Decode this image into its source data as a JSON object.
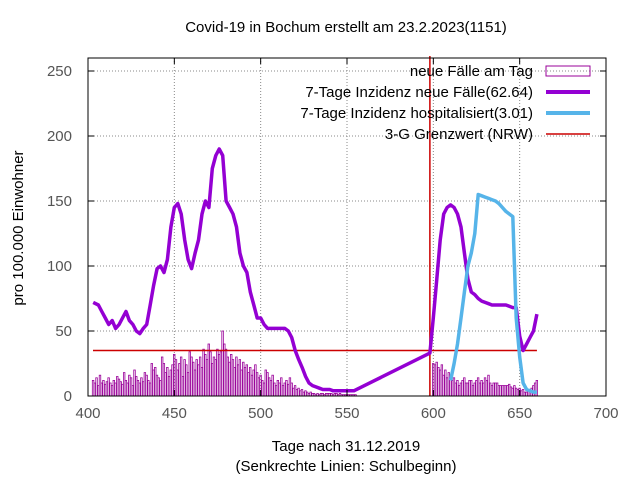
{
  "chart_data": {
    "type": "line",
    "title": "Covid-19 in Bochum erstellt am 23.2.2023(1151)",
    "xlabel": "Tage nach 31.12.2019",
    "xlabel2": "(Senkrechte Linien: Schulbeginn)",
    "ylabel": "pro 100.000 Einwohner",
    "xlim": [
      400,
      700
    ],
    "ylim": [
      0,
      260
    ],
    "xticks": [
      400,
      450,
      500,
      550,
      600,
      650,
      700
    ],
    "yticks": [
      0,
      50,
      100,
      150,
      200,
      250
    ],
    "grid": true,
    "legend_position": "top-right",
    "colors": {
      "bars": "#990099",
      "incidence": "#9400d3",
      "hospital": "#56b4e9",
      "threshold": "#cc0000"
    },
    "legend": [
      {
        "label": "neue Fälle am Tag",
        "kind": "box"
      },
      {
        "label": "7-Tage Inzidenz neue Fälle(62.64)",
        "kind": "line-thick"
      },
      {
        "label": "7-Tage Inzidenz hospitalisiert(3.01)",
        "kind": "line-hosp"
      },
      {
        "label": "3-G Grenzwert (NRW)",
        "kind": "line-thin"
      }
    ],
    "threshold": 35,
    "school_start_x": 598,
    "series": [
      {
        "name": "7-Tage Inzidenz neue Fälle(62.64)",
        "x": [
          403,
          406,
          408,
          410,
          412,
          414,
          416,
          418,
          420,
          422,
          424,
          426,
          428,
          430,
          432,
          434,
          436,
          438,
          440,
          442,
          444,
          446,
          448,
          450,
          452,
          454,
          456,
          458,
          460,
          462,
          464,
          466,
          468,
          470,
          472,
          474,
          476,
          478,
          480,
          482,
          484,
          486,
          488,
          490,
          492,
          494,
          496,
          498,
          500,
          502,
          504,
          506,
          508,
          510,
          512,
          514,
          516,
          518,
          520,
          522,
          524,
          526,
          528,
          530,
          532,
          534,
          536,
          538,
          540,
          542,
          544,
          546,
          548,
          550,
          552,
          554,
          598,
          600,
          602,
          604,
          606,
          608,
          610,
          612,
          614,
          616,
          618,
          620,
          622,
          624,
          626,
          628,
          630,
          632,
          634,
          636,
          638,
          640,
          642,
          644,
          646,
          648,
          650,
          652,
          654,
          656,
          658,
          660
        ],
        "y": [
          72,
          70,
          65,
          60,
          55,
          58,
          52,
          55,
          60,
          65,
          58,
          55,
          50,
          48,
          52,
          55,
          70,
          85,
          98,
          100,
          95,
          105,
          130,
          145,
          148,
          140,
          120,
          105,
          98,
          110,
          120,
          140,
          150,
          145,
          175,
          185,
          190,
          185,
          150,
          145,
          140,
          130,
          110,
          100,
          95,
          80,
          70,
          60,
          60,
          55,
          52,
          52,
          52,
          52,
          52,
          52,
          50,
          45,
          35,
          28,
          22,
          15,
          10,
          8,
          7,
          6,
          5,
          5,
          5,
          4,
          4,
          4,
          4,
          4,
          4,
          4,
          33,
          60,
          90,
          120,
          140,
          145,
          147,
          145,
          140,
          130,
          110,
          90,
          80,
          78,
          75,
          73,
          72,
          71,
          70,
          70,
          70,
          70,
          70,
          69,
          68,
          68,
          46,
          35,
          40,
          45,
          50,
          63
        ]
      },
      {
        "name": "7-Tage Inzidenz hospitalisiert(3.01)",
        "x": [
          610,
          612,
          614,
          616,
          618,
          620,
          622,
          624,
          626,
          628,
          630,
          632,
          634,
          636,
          638,
          640,
          642,
          644,
          646,
          648,
          650,
          652,
          654,
          656,
          658,
          660
        ],
        "y": [
          12,
          25,
          40,
          60,
          80,
          100,
          110,
          125,
          155,
          154,
          153,
          152,
          151,
          150,
          148,
          145,
          142,
          140,
          138,
          60,
          30,
          10,
          5,
          4,
          3,
          3
        ]
      }
    ],
    "bars": {
      "name": "neue Fälle am Tag",
      "x": [
        403,
        404,
        405,
        406,
        407,
        408,
        409,
        410,
        411,
        412,
        413,
        414,
        415,
        416,
        417,
        418,
        419,
        420,
        421,
        422,
        423,
        424,
        425,
        426,
        427,
        428,
        429,
        430,
        431,
        432,
        433,
        434,
        435,
        436,
        437,
        438,
        439,
        440,
        441,
        442,
        443,
        444,
        445,
        446,
        447,
        448,
        449,
        450,
        451,
        452,
        453,
        454,
        455,
        456,
        457,
        458,
        459,
        460,
        461,
        462,
        463,
        464,
        465,
        466,
        467,
        468,
        469,
        470,
        471,
        472,
        473,
        474,
        475,
        476,
        477,
        478,
        479,
        480,
        481,
        482,
        483,
        484,
        485,
        486,
        487,
        488,
        489,
        490,
        491,
        492,
        493,
        494,
        495,
        496,
        497,
        498,
        499,
        500,
        501,
        502,
        503,
        504,
        505,
        506,
        507,
        508,
        509,
        510,
        511,
        512,
        513,
        514,
        515,
        516,
        517,
        518,
        519,
        520,
        521,
        522,
        523,
        524,
        525,
        526,
        527,
        528,
        529,
        530,
        531,
        532,
        533,
        534,
        535,
        536,
        537,
        538,
        539,
        540,
        541,
        542,
        543,
        544,
        545,
        546,
        547,
        548,
        549,
        550,
        551,
        552,
        553,
        554,
        555,
        600,
        601,
        602,
        603,
        604,
        605,
        606,
        607,
        608,
        609,
        610,
        611,
        612,
        613,
        614,
        615,
        616,
        617,
        618,
        619,
        620,
        621,
        622,
        623,
        624,
        625,
        626,
        627,
        628,
        629,
        630,
        631,
        632,
        633,
        634,
        635,
        636,
        637,
        638,
        639,
        640,
        641,
        642,
        643,
        644,
        645,
        646,
        647,
        648,
        649,
        650,
        651,
        652,
        653,
        654,
        655,
        656,
        657,
        658,
        659,
        660
      ],
      "values": [
        12,
        10,
        14,
        8,
        16,
        10,
        12,
        9,
        11,
        14,
        10,
        8,
        12,
        10,
        15,
        13,
        11,
        9,
        18,
        12,
        10,
        16,
        14,
        8,
        20,
        15,
        12,
        10,
        14,
        11,
        18,
        16,
        12,
        10,
        25,
        20,
        22,
        16,
        14,
        12,
        30,
        25,
        18,
        22,
        15,
        20,
        24,
        32,
        28,
        20,
        25,
        30,
        15,
        28,
        24,
        18,
        34,
        30,
        26,
        20,
        28,
        24,
        30,
        22,
        36,
        32,
        28,
        40,
        34,
        25,
        30,
        28,
        36,
        32,
        34,
        50,
        40,
        36,
        30,
        26,
        32,
        28,
        22,
        30,
        24,
        28,
        20,
        26,
        22,
        24,
        18,
        22,
        16,
        20,
        24,
        18,
        14,
        16,
        12,
        10,
        20,
        18,
        14,
        12,
        16,
        10,
        8,
        12,
        10,
        14,
        8,
        10,
        12,
        9,
        14,
        10,
        6,
        8,
        5,
        6,
        4,
        5,
        3,
        4,
        3,
        2,
        3,
        2,
        2,
        1,
        2,
        1,
        2,
        2,
        1,
        2,
        2,
        2,
        2,
        1,
        2,
        2,
        1,
        2,
        1,
        1,
        1,
        1,
        1,
        1,
        1,
        1,
        1,
        25,
        24,
        26,
        22,
        20,
        24,
        16,
        20,
        14,
        18,
        14,
        12,
        14,
        10,
        12,
        8,
        10,
        12,
        14,
        10,
        10,
        12,
        12,
        8,
        10,
        12,
        14,
        10,
        12,
        10,
        14,
        12,
        16,
        10,
        8,
        10,
        10,
        10,
        8,
        8,
        8,
        8,
        8,
        8,
        9,
        7,
        6,
        8,
        6,
        5,
        6,
        4,
        5,
        3,
        3,
        5,
        4,
        6,
        8,
        10,
        12
      ]
    }
  }
}
